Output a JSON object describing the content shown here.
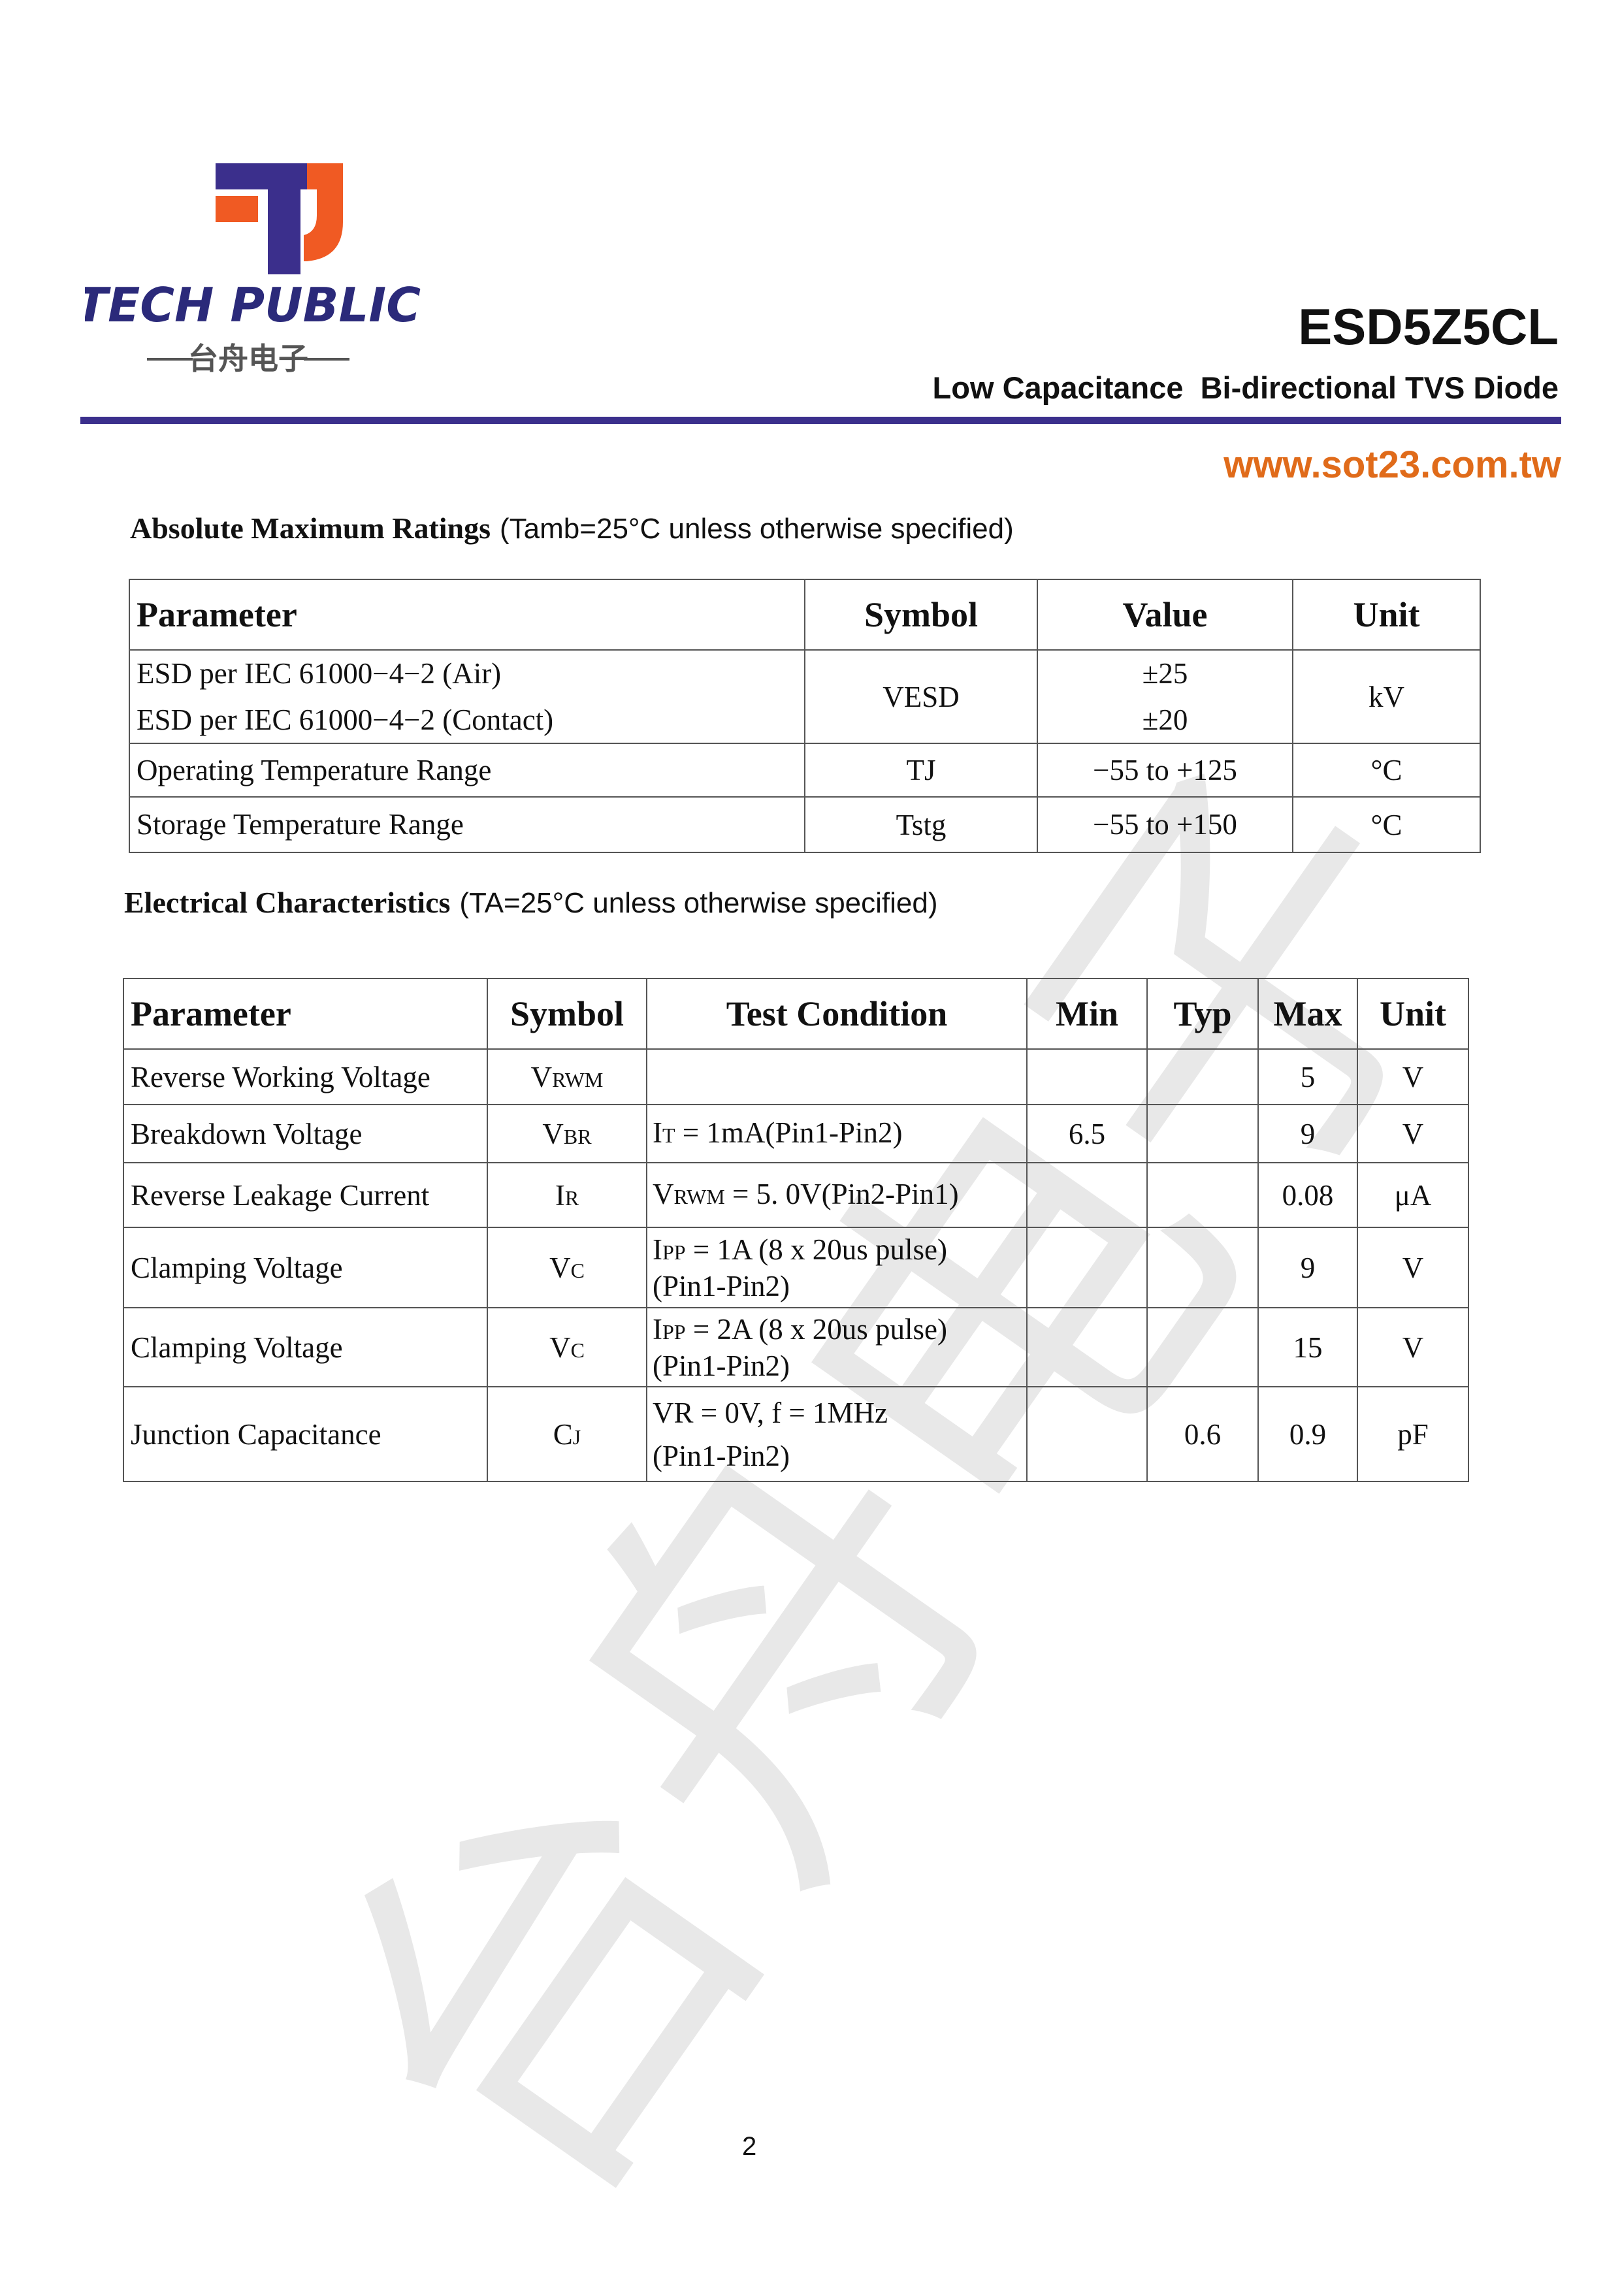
{
  "header": {
    "logo_text": "TECH PUBLIC",
    "logo_subtext": "台舟电子",
    "part_number": "ESD5Z5CL",
    "subtitle": "Low Capacitance  Bi-directional TVS Diode",
    "website": "www.sot23.com.tw"
  },
  "watermark": "台舟电子",
  "absolute_maximum_ratings": {
    "title": "Absolute Maximum Ratings",
    "condition": "(Tamb=25°C unless otherwise specified)",
    "columns": [
      "Parameter",
      "Symbol",
      "Value",
      "Unit"
    ],
    "rows": [
      {
        "parameter": [
          "ESD per IEC 61000−4−2 (Air)",
          "ESD per IEC 61000−4−2 (Contact)"
        ],
        "symbol": "VESD",
        "value": [
          "±25",
          "±20"
        ],
        "unit": "kV"
      },
      {
        "parameter": [
          "Operating Temperature Range"
        ],
        "symbol": "TJ",
        "value": [
          "−55 to +125"
        ],
        "unit": "°C"
      },
      {
        "parameter": [
          "Storage Temperature Range"
        ],
        "symbol": "Tstg",
        "value": [
          "−55 to +150"
        ],
        "unit": "°C"
      }
    ]
  },
  "electrical_characteristics": {
    "title": "Electrical Characteristics",
    "condition": "(TA=25°C unless otherwise specified)",
    "columns": [
      "Parameter",
      "Symbol",
      "Test Condition",
      "Min",
      "Typ",
      "Max",
      "Unit"
    ],
    "rows": [
      {
        "parameter": "Reverse Working Voltage",
        "symbol": [
          "V",
          {
            "sub": "RWM"
          }
        ],
        "condition": null,
        "min": null,
        "typ": null,
        "max": "5",
        "unit": "V"
      },
      {
        "parameter": "Breakdown Voltage",
        "symbol": [
          "V",
          {
            "sub": "BR"
          }
        ],
        "condition": [
          [
            "I",
            {
              "sub": "T"
            },
            " = 1mA(Pin1-Pin2)"
          ]
        ],
        "min": "6.5",
        "typ": null,
        "max": "9",
        "unit": "V"
      },
      {
        "parameter": "Reverse Leakage Current",
        "symbol": [
          "I",
          {
            "sub": "R"
          }
        ],
        "condition": [
          [
            "V",
            {
              "sub": "RWM"
            },
            " = 5. 0V(Pin2-Pin1)"
          ]
        ],
        "min": null,
        "typ": null,
        "max": "0.08",
        "unit": "μA"
      },
      {
        "parameter": "Clamping Voltage",
        "symbol": [
          "V",
          {
            "sub": "C"
          }
        ],
        "condition": [
          [
            "I",
            {
              "sub": "PP"
            },
            " = 1A (8 x 20us pulse)"
          ],
          [
            "(Pin1-Pin2)"
          ]
        ],
        "min": null,
        "typ": null,
        "max": "9",
        "unit": "V"
      },
      {
        "parameter": "Clamping Voltage",
        "symbol": [
          "V",
          {
            "sub": "C"
          }
        ],
        "condition": [
          [
            "I",
            {
              "sub": "PP"
            },
            " = 2A (8 x 20us pulse)"
          ],
          [
            "(Pin1-Pin2)"
          ]
        ],
        "min": null,
        "typ": null,
        "max": "15",
        "unit": "V"
      },
      {
        "parameter": "Junction Capacitance",
        "symbol": [
          "C",
          {
            "sub": "J"
          }
        ],
        "condition": [
          [
            "VR = 0V, f = 1MHz"
          ],
          [
            "(Pin1-Pin2)"
          ]
        ],
        "min": null,
        "typ": "0.6",
        "max": "0.9",
        "unit": "pF"
      }
    ]
  },
  "page_number": "2"
}
